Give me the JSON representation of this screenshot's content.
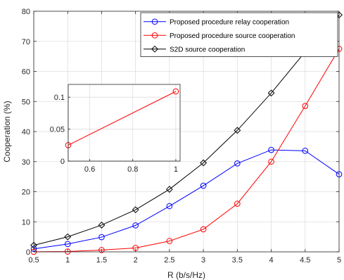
{
  "chart_data": {
    "type": "line",
    "xlabel": "R (b/s/Hz)",
    "ylabel": "Cooperation (%)",
    "xlim": [
      0.5,
      5
    ],
    "ylim": [
      0,
      80
    ],
    "xticks": [
      0.5,
      1,
      1.5,
      2,
      2.5,
      3,
      3.5,
      4,
      4.5,
      5
    ],
    "xtick_labels": [
      "0.5",
      "1",
      "1.5",
      "2",
      "2.5",
      "3",
      "3.5",
      "4",
      "4.5",
      "5"
    ],
    "yticks": [
      0,
      10,
      20,
      30,
      40,
      50,
      60,
      70,
      80
    ],
    "ytick_labels": [
      "0",
      "10",
      "20",
      "30",
      "40",
      "50",
      "60",
      "70",
      "80"
    ],
    "grid": true,
    "legend_position": "top-right",
    "x": [
      0.5,
      1,
      1.5,
      2,
      2.5,
      3,
      3.5,
      4,
      4.5,
      5
    ],
    "series": [
      {
        "name": "Proposed procedure relay cooperation",
        "color": "#0000ff",
        "marker": "circle",
        "values": [
          1.0,
          2.6,
          4.9,
          8.8,
          15.2,
          22.0,
          29.4,
          33.9,
          33.6,
          25.8
        ]
      },
      {
        "name": "Proposed procedure source cooperation",
        "color": "#ff0000",
        "marker": "circle",
        "values": [
          0.02,
          0.11,
          0.6,
          1.3,
          3.6,
          7.5,
          16.0,
          30.0,
          48.5,
          67.5
        ]
      },
      {
        "name": "S2D source cooperation",
        "color": "#000000",
        "marker": "diamond",
        "values": [
          2.2,
          5.0,
          8.9,
          14.0,
          20.8,
          29.6,
          40.4,
          52.8,
          66.5,
          78.8
        ]
      }
    ],
    "inset": {
      "xlim": [
        0.5,
        1.02
      ],
      "ylim": [
        0,
        0.12
      ],
      "xticks": [
        0.6,
        0.8,
        1
      ],
      "xtick_labels": [
        "0.6",
        "0.8",
        "1"
      ],
      "yticks": [
        0,
        0.05,
        0.1
      ],
      "ytick_labels": [
        "0",
        "0.05",
        "0.1"
      ],
      "series": [
        {
          "color": "#ff0000",
          "marker": "circle",
          "x": [
            0.5,
            1
          ],
          "values": [
            0.025,
            0.109
          ]
        }
      ]
    }
  }
}
